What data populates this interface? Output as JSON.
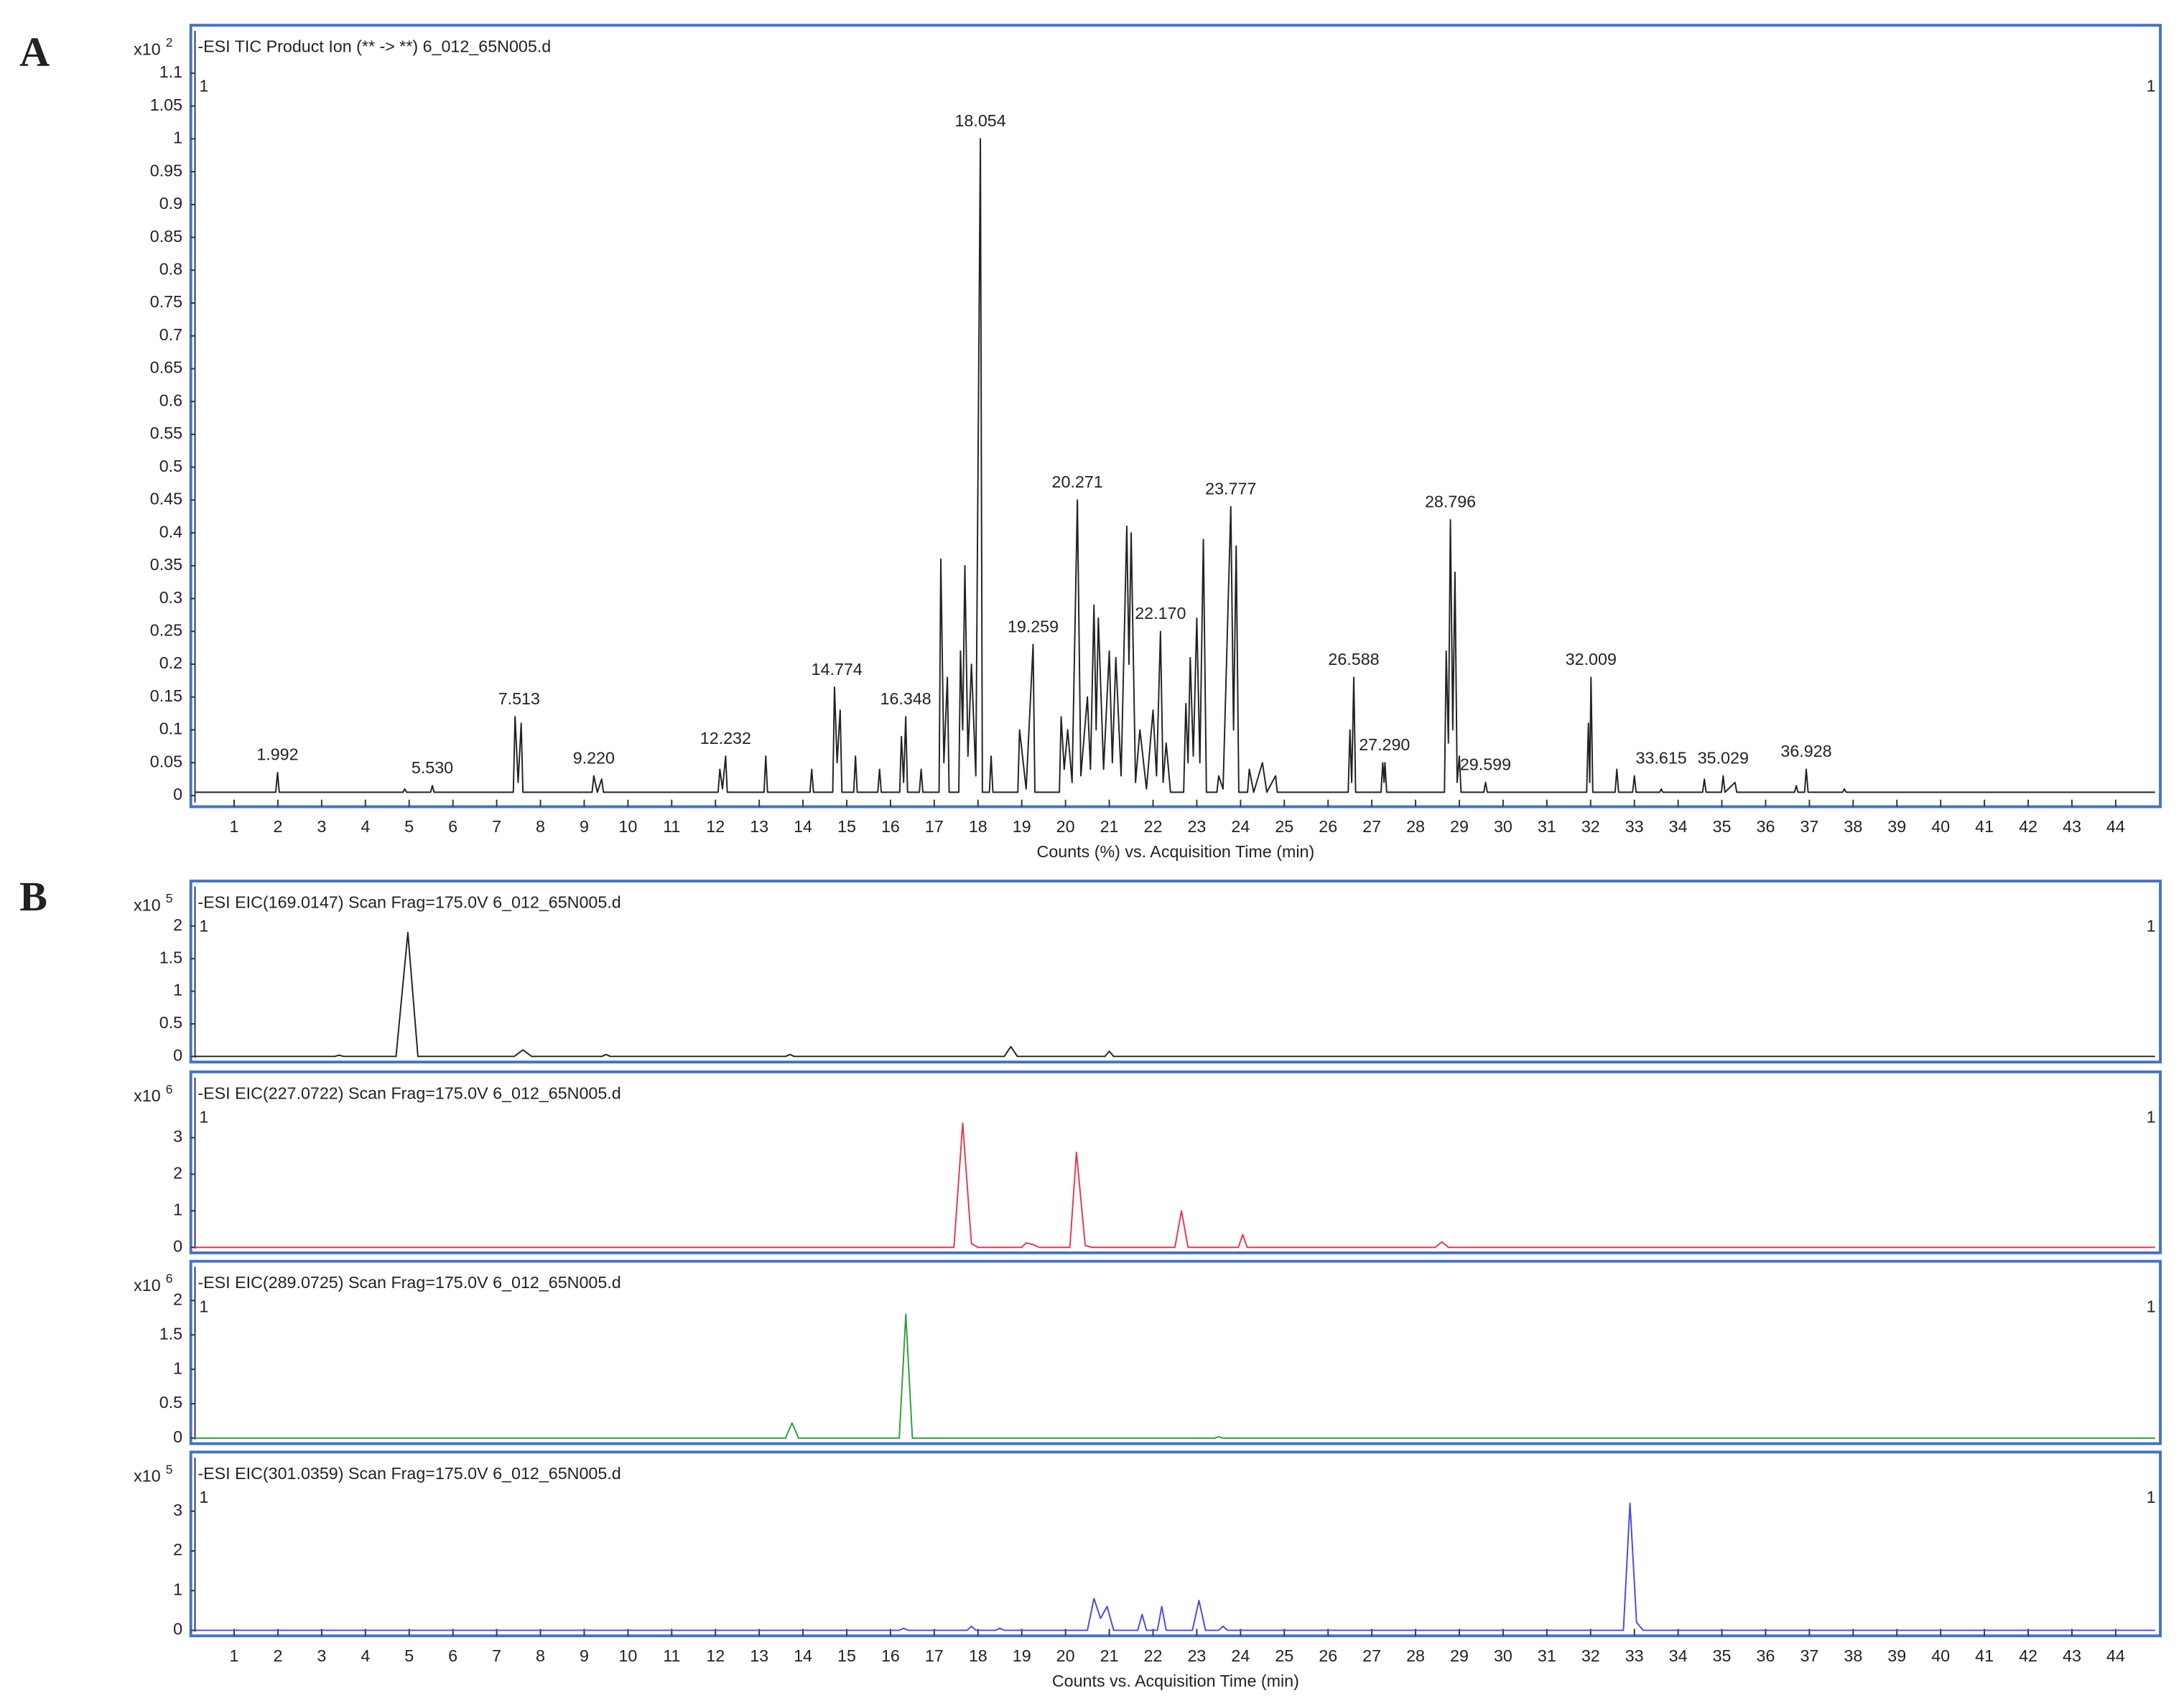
{
  "panel_labels": [
    "A",
    "B"
  ],
  "chart_data": [
    {
      "type": "line",
      "title": "-ESI TIC Product Ion (** -> **) 6_012_65N005.d",
      "y_scale_base": "x10",
      "y_scale_exp": 2,
      "corner_label": "1",
      "color": "#222222",
      "frame_color": "#4472c4",
      "xlabel": "Counts (%) vs. Acquisition Time (min)",
      "xlim": [
        0.01,
        45.02
      ],
      "ylim": [
        -0.017,
        1.173
      ],
      "xticks": [
        1,
        2,
        3,
        4,
        5,
        6,
        7,
        8,
        9,
        10,
        11,
        12,
        13,
        14,
        15,
        16,
        17,
        18,
        19,
        20,
        21,
        22,
        23,
        24,
        25,
        26,
        27,
        28,
        29,
        30,
        31,
        32,
        33,
        34,
        35,
        36,
        37,
        38,
        39,
        40,
        41,
        42,
        43,
        44
      ],
      "yticks": [
        0,
        0.05,
        0.1,
        0.15,
        0.2,
        0.25,
        0.3,
        0.35,
        0.4,
        0.45,
        0.5,
        0.55,
        0.6,
        0.65,
        0.7,
        0.75,
        0.8,
        0.85,
        0.9,
        0.95,
        1,
        1.05,
        1.1
      ],
      "x": [
        0.1,
        1.95,
        1.992,
        2.03,
        4.86,
        4.9,
        4.94,
        5.49,
        5.53,
        5.57,
        7.38,
        7.42,
        7.49,
        7.56,
        7.6,
        9.18,
        9.22,
        9.3,
        9.4,
        9.44,
        12.06,
        12.1,
        12.16,
        12.232,
        12.27,
        13.11,
        13.15,
        13.19,
        14.16,
        14.2,
        14.24,
        14.68,
        14.72,
        14.78,
        14.85,
        14.89,
        15.16,
        15.2,
        15.24,
        15.71,
        15.75,
        15.79,
        16.21,
        16.25,
        16.3,
        16.348,
        16.39,
        16.66,
        16.7,
        16.74,
        17.11,
        17.15,
        17.22,
        17.3,
        17.34,
        17.56,
        17.6,
        17.65,
        17.7,
        17.77,
        17.85,
        17.95,
        18.054,
        18.1,
        18.26,
        18.3,
        18.34,
        18.91,
        18.95,
        19.1,
        19.259,
        19.3,
        19.86,
        19.9,
        19.97,
        20.05,
        20.15,
        20.271,
        20.35,
        20.5,
        20.57,
        20.65,
        20.7,
        20.75,
        20.87,
        21.0,
        21.07,
        21.15,
        21.27,
        21.4,
        21.45,
        21.5,
        21.6,
        21.7,
        21.85,
        22.0,
        22.08,
        22.17,
        22.23,
        22.3,
        22.4,
        22.7,
        22.75,
        22.8,
        22.85,
        22.92,
        23.0,
        23.07,
        23.15,
        23.22,
        23.46,
        23.5,
        23.6,
        23.777,
        23.84,
        23.9,
        23.96,
        24.16,
        24.2,
        24.3,
        24.5,
        24.6,
        24.8,
        24.84,
        26.46,
        26.5,
        26.54,
        26.588,
        26.63,
        27.21,
        27.25,
        27.28,
        27.3,
        27.34,
        28.66,
        28.7,
        28.75,
        28.796,
        28.85,
        28.9,
        28.95,
        29.0,
        29.04,
        29.56,
        29.599,
        29.64,
        31.91,
        31.95,
        31.98,
        32.009,
        32.05,
        32.56,
        32.6,
        32.64,
        32.96,
        33.0,
        33.04,
        33.58,
        33.615,
        33.65,
        34.56,
        34.6,
        34.64,
        34.99,
        35.029,
        35.07,
        35.3,
        35.34,
        36.66,
        36.7,
        36.74,
        36.89,
        36.928,
        36.97,
        37.76,
        37.8,
        37.84,
        44.9
      ],
      "values": [
        0.005,
        0.005,
        0.035,
        0.005,
        0.005,
        0.01,
        0.005,
        0.005,
        0.015,
        0.005,
        0.005,
        0.12,
        0.02,
        0.11,
        0.005,
        0.005,
        0.03,
        0.005,
        0.025,
        0.005,
        0.005,
        0.04,
        0.01,
        0.06,
        0.005,
        0.005,
        0.06,
        0.005,
        0.005,
        0.04,
        0.005,
        0.005,
        0.165,
        0.05,
        0.13,
        0.005,
        0.005,
        0.06,
        0.005,
        0.005,
        0.04,
        0.005,
        0.005,
        0.09,
        0.02,
        0.12,
        0.005,
        0.005,
        0.04,
        0.005,
        0.005,
        0.36,
        0.05,
        0.18,
        0.005,
        0.005,
        0.22,
        0.1,
        0.35,
        0.06,
        0.2,
        0.03,
        1.0,
        0.005,
        0.005,
        0.06,
        0.005,
        0.005,
        0.1,
        0.01,
        0.23,
        0.005,
        0.005,
        0.12,
        0.04,
        0.1,
        0.02,
        0.45,
        0.03,
        0.15,
        0.04,
        0.29,
        0.1,
        0.27,
        0.04,
        0.22,
        0.05,
        0.21,
        0.03,
        0.41,
        0.2,
        0.4,
        0.02,
        0.1,
        0.01,
        0.13,
        0.03,
        0.25,
        0.02,
        0.08,
        0.005,
        0.005,
        0.14,
        0.05,
        0.21,
        0.06,
        0.27,
        0.05,
        0.39,
        0.005,
        0.005,
        0.03,
        0.01,
        0.44,
        0.1,
        0.38,
        0.005,
        0.005,
        0.04,
        0.005,
        0.05,
        0.005,
        0.03,
        0.005,
        0.005,
        0.1,
        0.02,
        0.18,
        0.005,
        0.005,
        0.05,
        0.02,
        0.05,
        0.005,
        0.005,
        0.22,
        0.08,
        0.42,
        0.1,
        0.34,
        0.02,
        0.06,
        0.005,
        0.005,
        0.02,
        0.005,
        0.005,
        0.11,
        0.02,
        0.18,
        0.005,
        0.005,
        0.04,
        0.005,
        0.005,
        0.03,
        0.005,
        0.005,
        0.01,
        0.005,
        0.005,
        0.025,
        0.005,
        0.005,
        0.03,
        0.005,
        0.02,
        0.005,
        0.005,
        0.015,
        0.005,
        0.005,
        0.04,
        0.005,
        0.005,
        0.01,
        0.005,
        0.005
      ],
      "annotations": [
        {
          "x": 1.992,
          "y": 0.035,
          "label": "1.992"
        },
        {
          "x": 5.53,
          "y": 0.015,
          "label": "5.530"
        },
        {
          "x": 7.513,
          "y": 0.12,
          "label": "7.513"
        },
        {
          "x": 9.22,
          "y": 0.03,
          "label": "9.220"
        },
        {
          "x": 12.232,
          "y": 0.06,
          "label": "12.232"
        },
        {
          "x": 14.774,
          "y": 0.165,
          "label": "14.774"
        },
        {
          "x": 16.348,
          "y": 0.12,
          "label": "16.348"
        },
        {
          "x": 18.054,
          "y": 1.0,
          "label": "18.054"
        },
        {
          "x": 19.259,
          "y": 0.23,
          "label": "19.259"
        },
        {
          "x": 20.271,
          "y": 0.45,
          "label": "20.271"
        },
        {
          "x": 22.17,
          "y": 0.25,
          "label": "22.170"
        },
        {
          "x": 23.777,
          "y": 0.44,
          "label": "23.777"
        },
        {
          "x": 26.588,
          "y": 0.18,
          "label": "26.588"
        },
        {
          "x": 27.29,
          "y": 0.05,
          "label": "27.290"
        },
        {
          "x": 28.796,
          "y": 0.42,
          "label": "28.796"
        },
        {
          "x": 29.599,
          "y": 0.02,
          "label": "29.599"
        },
        {
          "x": 32.009,
          "y": 0.18,
          "label": "32.009"
        },
        {
          "x": 33.615,
          "y": 0.03,
          "label": "33.615"
        },
        {
          "x": 35.029,
          "y": 0.03,
          "label": "35.029"
        },
        {
          "x": 36.928,
          "y": 0.04,
          "label": "36.928"
        }
      ]
    },
    {
      "type": "line",
      "title": "-ESI EIC(169.0147) Scan Frag=175.0V 6_012_65N005.d",
      "y_scale_base": "x10",
      "y_scale_exp": 5,
      "corner_label": "1",
      "color": "#222222",
      "frame_color": "#4472c4",
      "xlim": [
        0.01,
        45.02
      ],
      "ylim": [
        -0.086,
        2.69
      ],
      "yticks": [
        0,
        0.5,
        1,
        1.5,
        2
      ],
      "x": [
        0.1,
        3.3,
        3.4,
        3.5,
        4.7,
        4.97,
        5.2,
        7.4,
        7.6,
        7.8,
        9.4,
        9.5,
        9.6,
        13.6,
        13.7,
        13.8,
        18.6,
        18.75,
        18.9,
        20.9,
        21.0,
        21.1,
        44.9
      ],
      "values": [
        0,
        0,
        0.02,
        0,
        0,
        1.9,
        0,
        0,
        0.1,
        0,
        0,
        0.03,
        0,
        0,
        0.03,
        0,
        0,
        0.15,
        0,
        0,
        0.08,
        0,
        0
      ]
    },
    {
      "type": "line",
      "title": "-ESI EIC(227.0722) Scan Frag=175.0V 6_012_65N005.d",
      "y_scale_base": "x10",
      "y_scale_exp": 6,
      "corner_label": "1",
      "color": "#e8384f",
      "frame_color": "#4472c4",
      "xlim": [
        0.01,
        45.02
      ],
      "ylim": [
        -0.15,
        4.8
      ],
      "yticks": [
        0,
        1,
        2,
        3
      ],
      "x": [
        0.1,
        17.45,
        17.65,
        17.85,
        18.0,
        19.0,
        19.1,
        19.25,
        19.4,
        20.1,
        20.25,
        20.45,
        20.6,
        22.5,
        22.65,
        22.8,
        23.95,
        24.05,
        24.15,
        28.45,
        28.6,
        28.75,
        44.9
      ],
      "values": [
        0,
        0,
        3.4,
        0.1,
        0,
        0,
        0.12,
        0.08,
        0,
        0,
        2.6,
        0.05,
        0,
        0,
        1.0,
        0,
        0,
        0.35,
        0,
        0,
        0.15,
        0,
        0
      ]
    },
    {
      "type": "line",
      "title": "-ESI EIC(289.0725) Scan Frag=175.0V 6_012_65N005.d",
      "y_scale_base": "x10",
      "y_scale_exp": 6,
      "corner_label": "1",
      "color": "#2e9e3a",
      "frame_color": "#4472c4",
      "xlim": [
        0.01,
        45.02
      ],
      "ylim": [
        -0.08,
        2.57
      ],
      "yticks": [
        0,
        0.5,
        1,
        1.5,
        2
      ],
      "x": [
        0.1,
        13.6,
        13.75,
        13.9,
        16.2,
        16.35,
        16.5,
        23.4,
        23.5,
        23.6,
        44.9
      ],
      "values": [
        0,
        0,
        0.22,
        0,
        0,
        1.8,
        0,
        0,
        0.02,
        0,
        0
      ]
    },
    {
      "type": "line",
      "title": "-ESI EIC(301.0359) Scan Frag=175.0V 6_012_65N005.d",
      "y_scale_base": "x10",
      "y_scale_exp": 5,
      "corner_label": "1",
      "color": "#4a4ae0",
      "frame_color": "#4472c4",
      "xlabel": "Counts vs. Acquisition Time (min)",
      "xlim": [
        0.01,
        45.02
      ],
      "ylim": [
        -0.14,
        4.49
      ],
      "yticks": [
        0,
        1,
        2,
        3
      ],
      "xticks": [
        1,
        2,
        3,
        4,
        5,
        6,
        7,
        8,
        9,
        10,
        11,
        12,
        13,
        14,
        15,
        16,
        17,
        18,
        19,
        20,
        21,
        22,
        23,
        24,
        25,
        26,
        27,
        28,
        29,
        30,
        31,
        32,
        33,
        34,
        35,
        36,
        37,
        38,
        39,
        40,
        41,
        42,
        43,
        44
      ],
      "x": [
        0.1,
        16.2,
        16.3,
        16.4,
        17.75,
        17.85,
        17.95,
        18.4,
        18.5,
        18.6,
        20.5,
        20.65,
        20.8,
        20.95,
        21.1,
        21.65,
        21.75,
        21.85,
        22.1,
        22.2,
        22.3,
        22.9,
        23.05,
        23.2,
        23.5,
        23.6,
        23.7,
        32.75,
        32.9,
        33.05,
        33.2,
        44.9
      ],
      "values": [
        0,
        0,
        0.05,
        0,
        0,
        0.1,
        0,
        0,
        0.05,
        0,
        0,
        0.8,
        0.3,
        0.6,
        0,
        0,
        0.4,
        0,
        0,
        0.6,
        0,
        0,
        0.75,
        0,
        0,
        0.1,
        0,
        0,
        3.2,
        0.2,
        0,
        0
      ]
    }
  ]
}
